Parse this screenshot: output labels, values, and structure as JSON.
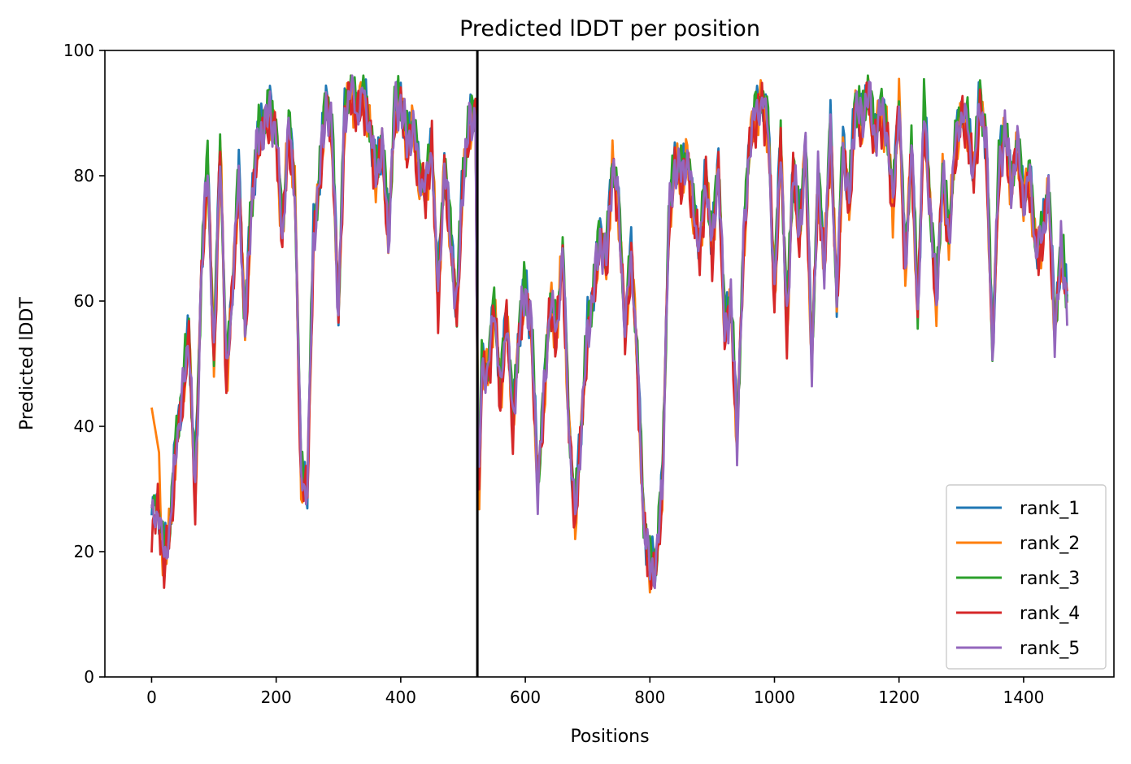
{
  "chart_data": {
    "type": "line",
    "title": "Predicted lDDT per position",
    "xlabel": "Positions",
    "ylabel": "Predicted lDDT",
    "xlim": [
      -75,
      1545
    ],
    "ylim": [
      0,
      100
    ],
    "xticks": [
      0,
      200,
      400,
      600,
      800,
      1000,
      1200,
      1400
    ],
    "yticks": [
      0,
      20,
      40,
      60,
      80,
      100
    ],
    "grid": false,
    "legend_position": "bottom-right",
    "vertical_marker_x": 523,
    "series_colors": {
      "rank_1": "#1f77b4",
      "rank_2": "#ff7f0e",
      "rank_3": "#2ca02c",
      "rank_4": "#d62728",
      "rank_5": "#9467bd"
    },
    "profile": {
      "x": [
        0,
        10,
        20,
        30,
        40,
        50,
        60,
        70,
        80,
        90,
        100,
        110,
        120,
        130,
        140,
        150,
        160,
        170,
        180,
        190,
        200,
        210,
        220,
        230,
        240,
        250,
        260,
        270,
        280,
        290,
        300,
        310,
        320,
        330,
        340,
        350,
        360,
        370,
        380,
        390,
        400,
        410,
        420,
        430,
        440,
        450,
        460,
        470,
        480,
        490,
        500,
        510,
        520,
        525,
        530,
        540,
        550,
        560,
        570,
        580,
        590,
        600,
        610,
        620,
        630,
        640,
        650,
        660,
        670,
        680,
        690,
        700,
        710,
        720,
        730,
        740,
        750,
        760,
        770,
        780,
        790,
        800,
        810,
        820,
        830,
        840,
        850,
        860,
        870,
        880,
        890,
        900,
        910,
        920,
        930,
        940,
        950,
        960,
        970,
        980,
        990,
        1000,
        1010,
        1020,
        1030,
        1040,
        1050,
        1060,
        1070,
        1080,
        1090,
        1100,
        1110,
        1120,
        1130,
        1140,
        1150,
        1160,
        1170,
        1180,
        1190,
        1200,
        1210,
        1220,
        1230,
        1240,
        1250,
        1260,
        1270,
        1280,
        1290,
        1300,
        1310,
        1320,
        1330,
        1340,
        1350,
        1360,
        1370,
        1380,
        1390,
        1400,
        1410,
        1420,
        1430,
        1440,
        1450,
        1460,
        1470
      ],
      "y": [
        25,
        27,
        19,
        24,
        38,
        45,
        55,
        28,
        65,
        82,
        50,
        85,
        48,
        62,
        80,
        55,
        75,
        85,
        88,
        90,
        87,
        70,
        88,
        78,
        32,
        30,
        70,
        80,
        92,
        86,
        58,
        90,
        94,
        90,
        93,
        88,
        80,
        85,
        70,
        90,
        92,
        85,
        88,
        80,
        78,
        85,
        60,
        82,
        70,
        58,
        80,
        88,
        90,
        25,
        50,
        48,
        60,
        45,
        58,
        40,
        55,
        62,
        55,
        30,
        45,
        60,
        55,
        68,
        40,
        25,
        40,
        55,
        62,
        70,
        66,
        82,
        75,
        55,
        68,
        50,
        25,
        17,
        18,
        30,
        72,
        82,
        80,
        83,
        75,
        68,
        80,
        68,
        82,
        55,
        60,
        38,
        68,
        85,
        90,
        92,
        88,
        60,
        86,
        55,
        82,
        70,
        85,
        50,
        80,
        65,
        88,
        60,
        85,
        75,
        92,
        88,
        94,
        86,
        90,
        88,
        75,
        92,
        65,
        85,
        58,
        90,
        75,
        60,
        80,
        70,
        85,
        90,
        88,
        80,
        92,
        85,
        52,
        80,
        88,
        78,
        85,
        76,
        80,
        68,
        70,
        78,
        55,
        68,
        60
      ],
      "series_offsets": {
        "rank_1": 0.8,
        "rank_2": -0.4,
        "rank_3": 1.2,
        "rank_4": -1.0,
        "rank_5": 0.0
      },
      "rank_2_start_peak": 43
    },
    "series": [
      {
        "name": "rank_1",
        "color": "#1f77b4"
      },
      {
        "name": "rank_2",
        "color": "#ff7f0e"
      },
      {
        "name": "rank_3",
        "color": "#2ca02c"
      },
      {
        "name": "rank_4",
        "color": "#d62728"
      },
      {
        "name": "rank_5",
        "color": "#9467bd"
      }
    ]
  }
}
